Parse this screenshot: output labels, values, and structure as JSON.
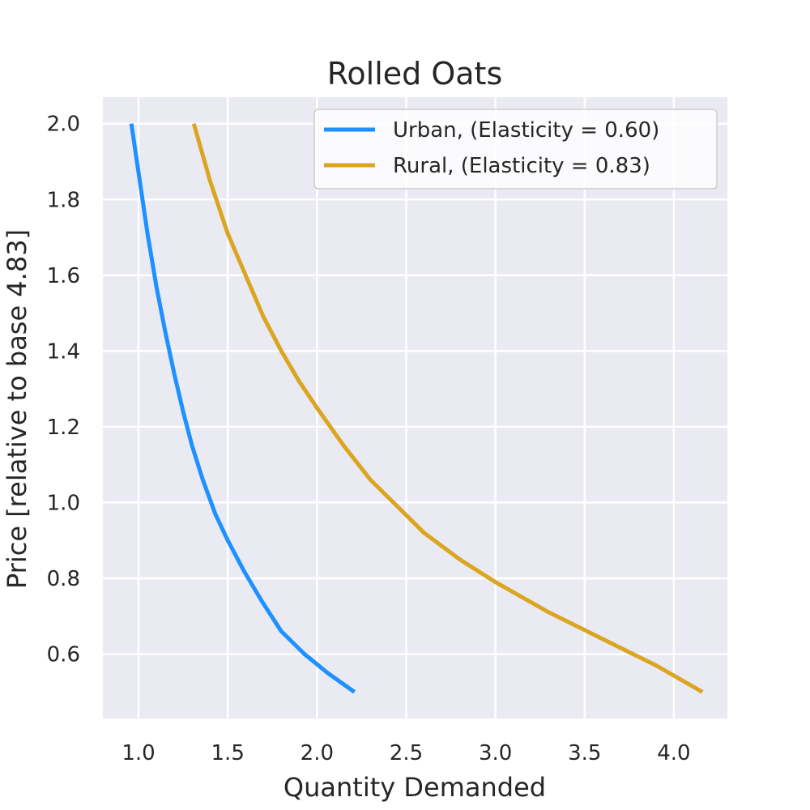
{
  "chart_data": {
    "type": "line",
    "title": "Rolled Oats",
    "xlabel": "Quantity Demanded",
    "ylabel": "Price [relative to base 4.83]",
    "xlim": [
      0.8,
      4.3
    ],
    "ylim": [
      0.43,
      2.07
    ],
    "x_ticks": [
      "1.0",
      "1.5",
      "2.0",
      "2.5",
      "3.0",
      "3.5",
      "4.0"
    ],
    "y_ticks": [
      "0.6",
      "0.8",
      "1.0",
      "1.2",
      "1.4",
      "1.6",
      "1.8",
      "2.0"
    ],
    "grid": true,
    "legend_position": "top-right",
    "background": "#eaeaf2",
    "series": [
      {
        "name": "Urban, (Elasticity = 0.60)",
        "color": "#1e90ff",
        "points": [
          [
            0.96,
            2.0
          ],
          [
            1.0,
            1.87
          ],
          [
            1.05,
            1.71
          ],
          [
            1.1,
            1.57
          ],
          [
            1.15,
            1.45
          ],
          [
            1.2,
            1.34
          ],
          [
            1.25,
            1.24
          ],
          [
            1.3,
            1.15
          ],
          [
            1.36,
            1.06
          ],
          [
            1.43,
            0.97
          ],
          [
            1.5,
            0.9
          ],
          [
            1.59,
            0.82
          ],
          [
            1.69,
            0.74
          ],
          [
            1.8,
            0.66
          ],
          [
            1.93,
            0.6
          ],
          [
            2.06,
            0.55
          ],
          [
            2.21,
            0.5
          ]
        ]
      },
      {
        "name": "Rural, (Elasticity = 0.83)",
        "color": "#daa520",
        "points": [
          [
            1.31,
            2.0
          ],
          [
            1.4,
            1.85
          ],
          [
            1.5,
            1.71
          ],
          [
            1.6,
            1.6
          ],
          [
            1.7,
            1.49
          ],
          [
            1.8,
            1.4
          ],
          [
            1.9,
            1.32
          ],
          [
            2.0,
            1.25
          ],
          [
            2.15,
            1.15
          ],
          [
            2.3,
            1.06
          ],
          [
            2.45,
            0.99
          ],
          [
            2.6,
            0.92
          ],
          [
            2.8,
            0.85
          ],
          [
            3.0,
            0.79
          ],
          [
            3.3,
            0.71
          ],
          [
            3.6,
            0.64
          ],
          [
            3.9,
            0.57
          ],
          [
            4.16,
            0.5
          ]
        ]
      }
    ]
  }
}
